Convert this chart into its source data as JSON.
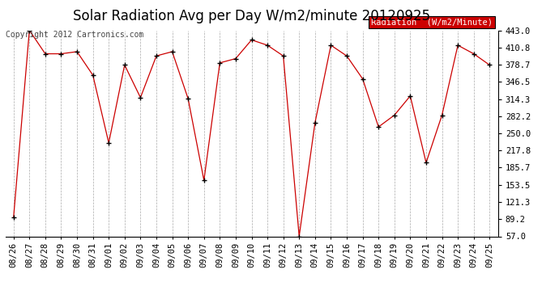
{
  "title": "Solar Radiation Avg per Day W/m2/minute 20120925",
  "copyright": "Copyright 2012 Cartronics.com",
  "legend_label": "Radiation  (W/m2/Minute)",
  "dates": [
    "08/26",
    "08/27",
    "08/28",
    "08/29",
    "08/30",
    "08/31",
    "09/01",
    "09/02",
    "09/03",
    "09/04",
    "09/05",
    "09/06",
    "09/07",
    "09/08",
    "09/09",
    "09/10",
    "09/11",
    "09/12",
    "09/13",
    "09/14",
    "09/15",
    "09/16",
    "09/17",
    "09/18",
    "09/19",
    "09/20",
    "09/21",
    "09/22",
    "09/23",
    "09/24",
    "09/25"
  ],
  "values": [
    92,
    443,
    399,
    399,
    403,
    359,
    232,
    378,
    317,
    395,
    403,
    315,
    162,
    382,
    390,
    425,
    415,
    395,
    57,
    270,
    415,
    395,
    352,
    262,
    284,
    320,
    195,
    284,
    415,
    399,
    378
  ],
  "yticks": [
    57.0,
    89.2,
    121.3,
    153.5,
    185.7,
    217.8,
    250.0,
    282.2,
    314.3,
    346.5,
    378.7,
    410.8,
    443.0
  ],
  "ymin": 57.0,
  "ymax": 443.0,
  "line_color": "#cc0000",
  "marker_color": "#000000",
  "bg_color": "#ffffff",
  "plot_bg_color": "#ffffff",
  "grid_color": "#aaaaaa",
  "title_fontsize": 12,
  "copyright_fontsize": 7,
  "tick_fontsize": 7.5,
  "legend_bg": "#cc0000",
  "legend_text_color": "#ffffff",
  "legend_fontsize": 7.5
}
